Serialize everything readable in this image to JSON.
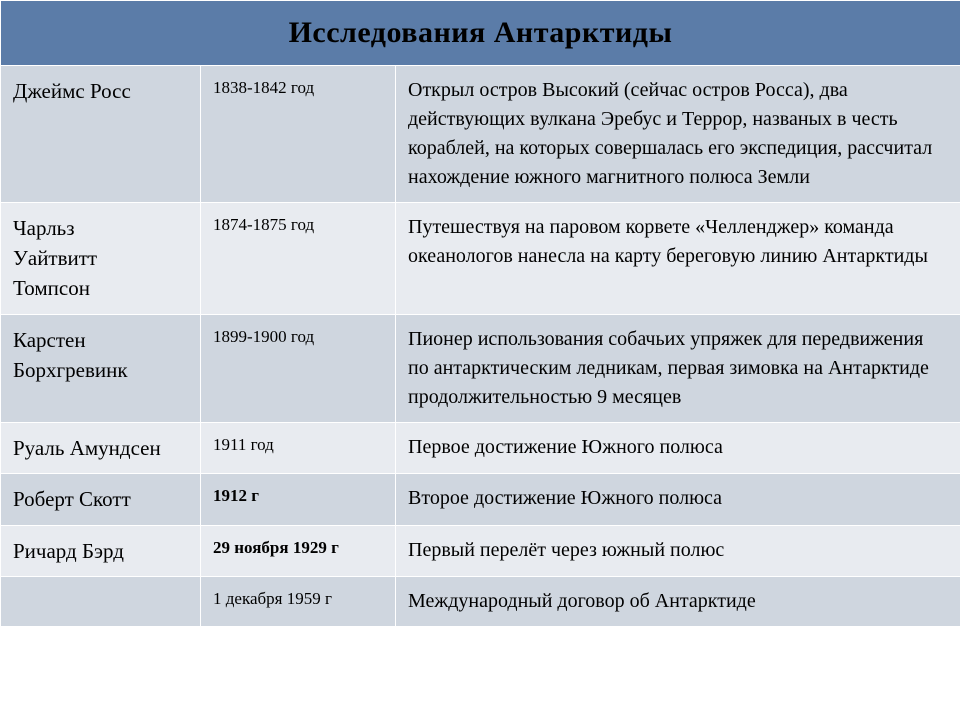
{
  "title": "Исследования Антарктиды",
  "header": {
    "bg": "#5b7ca8",
    "fg": "#000000",
    "fontsize": 30
  },
  "row_colors": {
    "odd": "#cfd6df",
    "even": "#e8ebf0"
  },
  "columns": {
    "explorer_w": 200,
    "years_w": 195,
    "desc_w": 565
  },
  "rows": [
    {
      "explorer": "Джеймс Росс",
      "years": "1838-1842 год",
      "years_bold": false,
      "desc": "Открыл остров Высокий (сейчас остров Росса), два действующих вулкана Эребус и Террор, названых в честь кораблей, на которых совершалась его экспедиция, рассчитал нахождение южного магнитного полюса Земли"
    },
    {
      "explorer": "Чарльз Уайтвитт Томпсон",
      "years": "1874-1875 год",
      "years_bold": false,
      "desc": "Путешествуя на паровом корвете «Челленджер» команда океанологов нанесла на  карту береговую линию Антарктиды"
    },
    {
      "explorer": "Карстен Борхгревинк",
      "years": "1899-1900 год",
      "years_bold": false,
      "desc": "Пионер использования собачьих упряжек для передвижения по антарктическим ледникам, первая зимовка на Антарктиде продолжительностью 9 месяцев"
    },
    {
      "explorer": "Руаль Амундсен",
      "years": "1911 год",
      "years_bold": false,
      "desc": "Первое достижение Южного полюса"
    },
    {
      "explorer": "Роберт Скотт",
      "years": "1912 г",
      "years_bold": true,
      "desc": "Второе достижение Южного полюса"
    },
    {
      "explorer": "Ричард Бэрд",
      "years": "29 ноября 1929 г",
      "years_bold": true,
      "desc": "Первый перелёт через южный полюс"
    },
    {
      "explorer": "",
      "years": "1 декабря 1959 г",
      "years_bold": false,
      "desc": "Международный договор об Антарктиде"
    }
  ]
}
